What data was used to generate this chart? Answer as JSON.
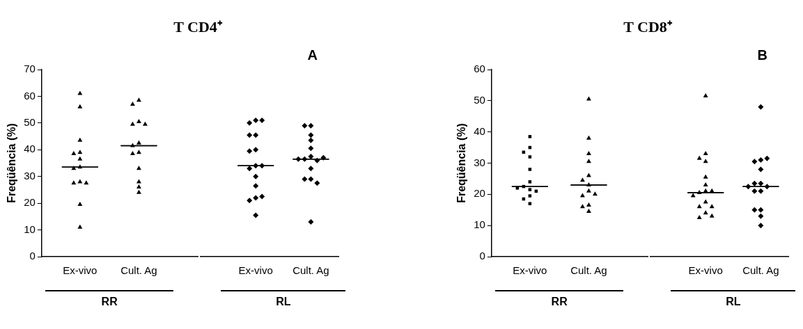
{
  "chart_data": [
    {
      "type": "scatter",
      "title": "T CD4⁺",
      "ylabel": "Freqüência (%)",
      "xlabel": "RR",
      "categories": [
        "Ex-vivo",
        "Cult. Ag"
      ],
      "ylim": [
        0,
        70
      ],
      "yticks": [
        0,
        10,
        20,
        30,
        40,
        50,
        60,
        70
      ],
      "legend": false,
      "series": [
        {
          "color": "#000000",
          "marker": "triangle",
          "x": [
            "Ex-vivo",
            "Ex-vivo",
            "Ex-vivo",
            "Ex-vivo",
            "Ex-vivo",
            "Ex-vivo",
            "Ex-vivo",
            "Ex-vivo",
            "Ex-vivo",
            "Ex-vivo",
            "Ex-vivo",
            "Ex-vivo",
            "Ex-vivo"
          ],
          "values": [
            61,
            56,
            43.5,
            39,
            38.5,
            36.5,
            33.5,
            33,
            28,
            27.5,
            27.5,
            19.5,
            11
          ]
        },
        {
          "color": "#000000",
          "marker": "triangle",
          "x": [
            "Cult. Ag",
            "Cult. Ag",
            "Cult. Ag",
            "Cult. Ag",
            "Cult. Ag",
            "Cult. Ag",
            "Cult. Ag",
            "Cult. Ag",
            "Cult. Ag",
            "Cult. Ag",
            "Cult. Ag",
            "Cult. Ag",
            "Cult. Ag"
          ],
          "values": [
            58.5,
            57,
            50.5,
            49.5,
            49.5,
            42.5,
            41.5,
            39,
            38.5,
            33,
            28,
            26,
            24
          ]
        },
        {
          "type": "box",
          "color": "#000000",
          "boxes": [
            {
              "low": 33.5,
              "q1": 33.5,
              "median": 33.5,
              "q3": 33.5,
              "high": 33.5
            },
            {
              "low": 41.5,
              "q1": 41.5,
              "median": 41.5,
              "q3": 41.5,
              "high": 41.5
            }
          ]
        }
      ]
    },
    {
      "type": "scatter",
      "xlabel": "RL",
      "categories": [
        "Ex-vivo",
        "Cult. Ag"
      ],
      "ylim": [
        0,
        70
      ],
      "yticks": [
        0,
        10,
        20,
        30,
        40,
        50,
        60,
        70
      ],
      "tick_labels": "x",
      "annotations": [
        "A"
      ],
      "legend": false,
      "series": [
        {
          "color": "#000000",
          "marker": "diamond",
          "x": [
            "Ex-vivo",
            "Ex-vivo",
            "Ex-vivo",
            "Ex-vivo",
            "Ex-vivo",
            "Ex-vivo",
            "Ex-vivo",
            "Ex-vivo",
            "Ex-vivo",
            "Ex-vivo",
            "Ex-vivo",
            "Ex-vivo",
            "Ex-vivo",
            "Ex-vivo",
            "Ex-vivo",
            "Ex-vivo"
          ],
          "values": [
            51,
            50,
            51,
            45.5,
            45.5,
            40,
            39.5,
            34,
            33,
            34,
            30,
            26.5,
            22,
            21,
            22.5,
            15.5
          ]
        },
        {
          "color": "#000000",
          "marker": "diamond",
          "x": [
            "Cult. Ag",
            "Cult. Ag",
            "Cult. Ag",
            "Cult. Ag",
            "Cult. Ag",
            "Cult. Ag",
            "Cult. Ag",
            "Cult. Ag",
            "Cult. Ag",
            "Cult. Ag",
            "Cult. Ag",
            "Cult. Ag",
            "Cult. Ag",
            "Cult. Ag",
            "Cult. Ag"
          ],
          "values": [
            49,
            49,
            45.5,
            43.5,
            40.5,
            37.5,
            36.5,
            36,
            36.5,
            37,
            33,
            29,
            29,
            27.5,
            13
          ]
        },
        {
          "type": "box",
          "color": "#000000",
          "boxes": [
            {
              "low": 34,
              "q1": 34,
              "median": 34,
              "q3": 34,
              "high": 34
            },
            {
              "low": 36.5,
              "q1": 36.5,
              "median": 36.5,
              "q3": 36.5,
              "high": 36.5
            }
          ]
        }
      ]
    },
    {
      "type": "scatter",
      "title": "T CD8⁺",
      "ylabel": "Freqüência (%)",
      "xlabel": "RR",
      "categories": [
        "Ex-vivo",
        "Cult. Ag"
      ],
      "ylim": [
        0,
        60
      ],
      "yticks": [
        0,
        10,
        20,
        30,
        40,
        50,
        60
      ],
      "legend": false,
      "series": [
        {
          "color": "#000000",
          "marker": "square",
          "x": [
            "Ex-vivo",
            "Ex-vivo",
            "Ex-vivo",
            "Ex-vivo",
            "Ex-vivo",
            "Ex-vivo",
            "Ex-vivo",
            "Ex-vivo",
            "Ex-vivo",
            "Ex-vivo",
            "Ex-vivo",
            "Ex-vivo",
            "Ex-vivo"
          ],
          "values": [
            38.5,
            35,
            33.5,
            32,
            28,
            24,
            22.5,
            21.5,
            21,
            22,
            19.5,
            18.5,
            17
          ]
        },
        {
          "color": "#000000",
          "marker": "triangle",
          "x": [
            "Cult. Ag",
            "Cult. Ag",
            "Cult. Ag",
            "Cult. Ag",
            "Cult. Ag",
            "Cult. Ag",
            "Cult. Ag",
            "Cult. Ag",
            "Cult. Ag",
            "Cult. Ag",
            "Cult. Ag",
            "Cult. Ag",
            "Cult. Ag"
          ],
          "values": [
            50.5,
            38,
            33,
            30.5,
            26,
            24.5,
            23,
            21,
            19.5,
            20,
            16.5,
            16,
            14.5
          ]
        },
        {
          "type": "box",
          "color": "#000000",
          "boxes": [
            {
              "low": 22.5,
              "q1": 22.5,
              "median": 22.5,
              "q3": 22.5,
              "high": 22.5
            },
            {
              "low": 23,
              "q1": 23,
              "median": 23,
              "q3": 23,
              "high": 23
            }
          ]
        }
      ]
    },
    {
      "type": "scatter",
      "xlabel": "RL",
      "categories": [
        "Ex-vivo",
        "Cult. Ag"
      ],
      "ylim": [
        0,
        60
      ],
      "yticks": [
        0,
        10,
        20,
        30,
        40,
        50,
        60
      ],
      "tick_labels": "x",
      "annotations": [
        "B"
      ],
      "legend": false,
      "series": [
        {
          "color": "#000000",
          "marker": "triangle",
          "x": [
            "Ex-vivo",
            "Ex-vivo",
            "Ex-vivo",
            "Ex-vivo",
            "Ex-vivo",
            "Ex-vivo",
            "Ex-vivo",
            "Ex-vivo",
            "Ex-vivo",
            "Ex-vivo",
            "Ex-vivo",
            "Ex-vivo",
            "Ex-vivo",
            "Ex-vivo",
            "Ex-vivo",
            "Ex-vivo"
          ],
          "values": [
            51.5,
            33,
            31.5,
            30.5,
            25.5,
            23,
            21,
            20.5,
            21,
            19.5,
            17.5,
            16,
            16,
            14,
            12.5,
            13
          ]
        },
        {
          "color": "#000000",
          "marker": "diamond",
          "x": [
            "Cult. Ag",
            "Cult. Ag",
            "Cult. Ag",
            "Cult. Ag",
            "Cult. Ag",
            "Cult. Ag",
            "Cult. Ag",
            "Cult. Ag",
            "Cult. Ag",
            "Cult. Ag",
            "Cult. Ag",
            "Cult. Ag",
            "Cult. Ag",
            "Cult. Ag",
            "Cult. Ag"
          ],
          "values": [
            48,
            31,
            30.5,
            31.5,
            28,
            23.5,
            23.5,
            22.5,
            22.5,
            21,
            21,
            15,
            15,
            13,
            10
          ]
        },
        {
          "type": "box",
          "color": "#000000",
          "boxes": [
            {
              "low": 20.5,
              "q1": 20.5,
              "median": 20.5,
              "q3": 20.5,
              "high": 20.5
            },
            {
              "low": 22.5,
              "q1": 22.5,
              "median": 22.5,
              "q3": 22.5,
              "high": 22.5
            }
          ]
        }
      ]
    }
  ]
}
